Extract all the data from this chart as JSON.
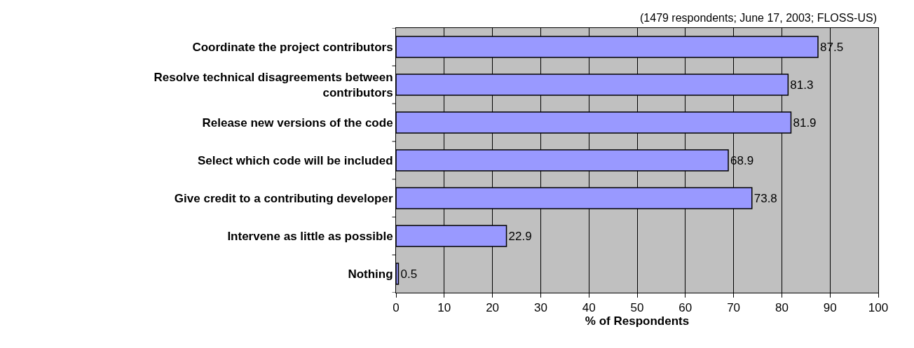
{
  "chart_data": {
    "type": "bar",
    "orientation": "horizontal",
    "categories": [
      "Coordinate the project contributors",
      "Resolve technical disagreements between contributors",
      "Release new versions of the code",
      "Select which code will be included",
      "Give credit to a contributing developer",
      "Intervene as little as possible",
      "Nothing"
    ],
    "values": [
      87.5,
      81.3,
      81.9,
      68.9,
      73.8,
      22.9,
      0.5
    ],
    "color": "#9999ff",
    "xlabel": "% of Respondents",
    "xlim": [
      0,
      100
    ],
    "xticks": [
      0,
      10,
      20,
      30,
      40,
      50,
      60,
      70,
      80,
      90,
      100
    ],
    "grid": "x",
    "data_labels": true,
    "annotations": [
      "(1479 respondents; June 17, 2003; FLOSS-US)"
    ]
  }
}
